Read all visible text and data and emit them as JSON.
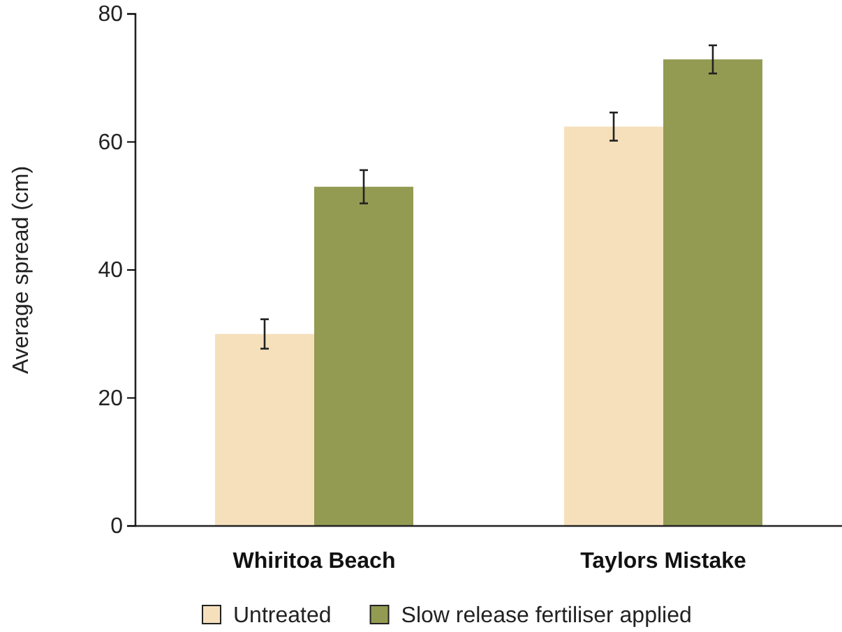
{
  "chart_data": {
    "type": "bar",
    "ylabel": "Average spread (cm)",
    "categories": [
      "Whiritoa Beach",
      "Taylors Mistake"
    ],
    "series": [
      {
        "name": "Untreated",
        "color": "#f6e0bc",
        "values": [
          30,
          62.4
        ],
        "errors": [
          2.3,
          2.2
        ]
      },
      {
        "name": "Slow release fertiliser applied",
        "color": "#939b52",
        "values": [
          53,
          72.9
        ],
        "errors": [
          2.6,
          2.2
        ]
      }
    ],
    "ylim": [
      0,
      80
    ],
    "yticks": [
      0,
      20,
      40,
      60,
      80
    ],
    "grid": false,
    "legend": "bottom"
  }
}
